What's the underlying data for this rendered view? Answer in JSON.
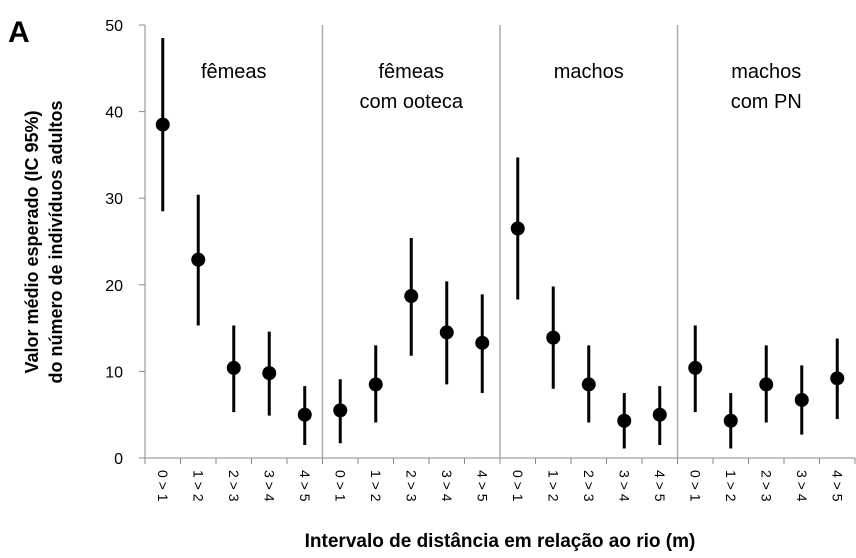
{
  "chart_data": {
    "type": "errorbar",
    "panel_label": "A",
    "y_label": [
      "Valor médio esperado (IC 95%)",
      "do número de indivíduos adultos"
    ],
    "x_label": "Intervalo de distância em relação ao rio (m)",
    "ylim": [
      0,
      50
    ],
    "yticks": [
      0,
      10,
      20,
      30,
      40,
      50
    ],
    "color": "#000000",
    "groups": [
      {
        "label": [
          "fêmeas"
        ],
        "categories": [
          "0 > 1",
          "1 > 2",
          "2 > 3",
          "3 > 4",
          "4 > 5"
        ],
        "values": [
          38.5,
          22.9,
          10.4,
          9.8,
          5.0
        ],
        "lower": [
          28.5,
          15.3,
          5.3,
          4.9,
          1.5
        ],
        "upper": [
          48.5,
          30.4,
          15.3,
          14.6,
          8.3
        ]
      },
      {
        "label": [
          "fêmeas",
          "com ooteca"
        ],
        "categories": [
          "0 > 1",
          "1 > 2",
          "2 > 3",
          "3 > 4",
          "4 > 5"
        ],
        "values": [
          5.5,
          8.5,
          18.7,
          14.5,
          13.3
        ],
        "lower": [
          1.7,
          4.1,
          11.8,
          8.5,
          7.5
        ],
        "upper": [
          9.1,
          13.0,
          25.4,
          20.4,
          18.9
        ]
      },
      {
        "label": [
          "machos"
        ],
        "categories": [
          "0 > 1",
          "1 > 2",
          "2 > 3",
          "3 > 4",
          "4 > 5"
        ],
        "values": [
          26.5,
          13.9,
          8.5,
          4.3,
          5.0
        ],
        "lower": [
          18.3,
          8.0,
          4.1,
          1.1,
          1.5
        ],
        "upper": [
          34.7,
          19.8,
          13.0,
          7.5,
          8.3
        ]
      },
      {
        "label": [
          "machos",
          "com PN"
        ],
        "categories": [
          "0 > 1",
          "1 > 2",
          "2 > 3",
          "3 > 4",
          "4 > 5"
        ],
        "values": [
          10.4,
          4.3,
          8.5,
          6.7,
          9.2
        ],
        "lower": [
          5.3,
          1.1,
          4.1,
          2.7,
          4.5
        ],
        "upper": [
          15.3,
          7.5,
          13.0,
          10.7,
          13.8
        ]
      }
    ]
  }
}
